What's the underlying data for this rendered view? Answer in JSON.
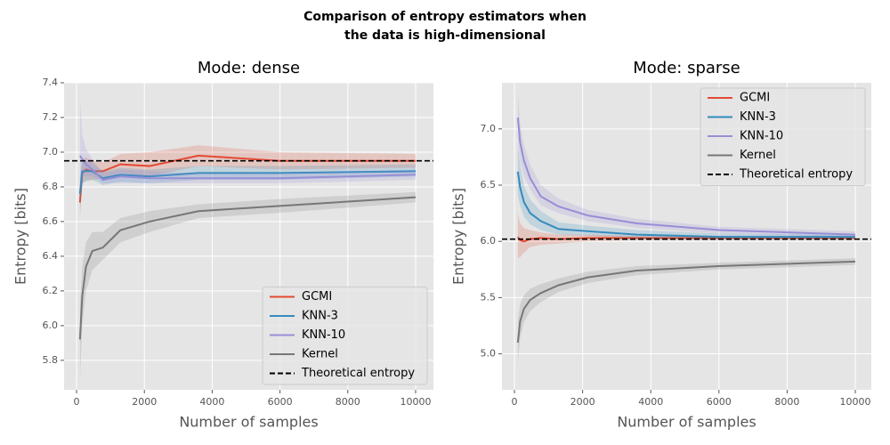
{
  "title": [
    "Comparison of entropy estimators when",
    "the data is high-dimensional"
  ],
  "chart_data": [
    {
      "type": "line",
      "title": "Mode: dense",
      "xlabel": "Number of samples",
      "ylabel": "Entropy [bits]",
      "x": [
        100,
        167,
        278,
        464,
        774,
        1292,
        2154,
        3594,
        5995,
        10000
      ],
      "xlim": [
        -368,
        10525
      ],
      "xticks": [
        0,
        2000,
        4000,
        6000,
        8000,
        10000
      ],
      "ylim": [
        5.63,
        7.4
      ],
      "yticks": [
        5.8,
        {
          "value": 6,
          "label": "6.0"
        },
        6.2,
        6.4,
        6.6,
        6.8,
        {
          "value": 7,
          "label": "7.0"
        },
        7.2,
        7.4
      ],
      "grid": true,
      "legend": "lower right",
      "series": [
        {
          "name": "GCMI",
          "color": "#E24A33",
          "values": [
            6.71,
            6.88,
            6.9,
            6.89,
            6.89,
            6.93,
            6.92,
            6.98,
            6.95,
            6.95
          ],
          "lower": [
            6.62,
            6.82,
            6.84,
            6.84,
            6.85,
            6.88,
            6.86,
            6.92,
            6.9,
            6.91
          ],
          "upper": [
            6.82,
            6.96,
            6.97,
            6.95,
            6.94,
            6.99,
            7.0,
            7.04,
            7.0,
            6.99
          ]
        },
        {
          "name": "KNN-3",
          "color": "#348ABD",
          "values": [
            6.76,
            6.89,
            6.89,
            6.89,
            6.85,
            6.87,
            6.86,
            6.88,
            6.88,
            6.89
          ],
          "lower": [
            6.66,
            6.82,
            6.83,
            6.84,
            6.81,
            6.83,
            6.82,
            6.84,
            6.84,
            6.86
          ],
          "upper": [
            6.86,
            6.96,
            6.95,
            6.94,
            6.89,
            6.91,
            6.9,
            6.92,
            6.92,
            6.93
          ]
        },
        {
          "name": "KNN-10",
          "color": "#988ED5",
          "values": [
            6.98,
            6.96,
            6.93,
            6.9,
            6.84,
            6.86,
            6.85,
            6.85,
            6.85,
            6.87
          ],
          "lower": [
            6.8,
            6.86,
            6.86,
            6.86,
            6.82,
            6.82,
            6.82,
            6.82,
            6.82,
            6.84
          ],
          "upper": [
            7.32,
            7.1,
            7.02,
            6.96,
            6.88,
            6.9,
            6.89,
            6.88,
            6.88,
            6.9
          ]
        },
        {
          "name": "Kernel",
          "color": "#777777",
          "values": [
            5.92,
            6.17,
            6.34,
            6.43,
            6.45,
            6.55,
            6.6,
            6.66,
            6.69,
            6.74
          ],
          "lower": [
            5.68,
            6.0,
            6.2,
            6.32,
            6.38,
            6.48,
            6.54,
            6.62,
            6.65,
            6.71
          ],
          "upper": [
            6.12,
            6.34,
            6.48,
            6.54,
            6.54,
            6.62,
            6.66,
            6.7,
            6.73,
            6.77
          ]
        }
      ],
      "hline": {
        "name": "Theoretical entropy",
        "value": 6.95,
        "color": "#000000"
      }
    },
    {
      "type": "line",
      "title": "Mode: sparse",
      "xlabel": "Number of samples",
      "ylabel": "Entropy [bits]",
      "x": [
        100,
        167,
        278,
        464,
        774,
        1292,
        2154,
        3594,
        5995,
        10000
      ],
      "xlim": [
        -366,
        10470
      ],
      "xticks": [
        0,
        2000,
        4000,
        6000,
        8000,
        10000
      ],
      "ylim": [
        4.68,
        7.41
      ],
      "yticks": [
        {
          "value": 5,
          "label": "5.0"
        },
        5.5,
        {
          "value": 6,
          "label": "6.0"
        },
        6.5,
        {
          "value": 7,
          "label": "7.0"
        }
      ],
      "grid": true,
      "legend": "upper right",
      "series": [
        {
          "name": "GCMI",
          "color": "#E24A33",
          "values": [
            6.04,
            6.01,
            6.0,
            6.02,
            6.03,
            6.02,
            6.03,
            6.03,
            6.03,
            6.03
          ],
          "lower": [
            5.85,
            5.86,
            5.9,
            5.95,
            5.97,
            5.98,
            6.0,
            6.01,
            6.01,
            6.01
          ],
          "upper": [
            6.25,
            6.16,
            6.12,
            6.1,
            6.08,
            6.06,
            6.06,
            6.05,
            6.05,
            6.05
          ]
        },
        {
          "name": "KNN-3",
          "color": "#348ABD",
          "values": [
            6.62,
            6.48,
            6.35,
            6.25,
            6.18,
            6.11,
            6.09,
            6.06,
            6.04,
            6.04
          ],
          "lower": [
            6.4,
            6.32,
            6.22,
            6.15,
            6.1,
            6.06,
            6.05,
            6.03,
            6.02,
            6.02
          ],
          "upper": [
            6.88,
            6.68,
            6.5,
            6.37,
            6.27,
            6.17,
            6.14,
            6.1,
            6.07,
            6.06
          ]
        },
        {
          "name": "KNN-10",
          "color": "#988ED5",
          "values": [
            7.1,
            6.88,
            6.72,
            6.56,
            6.4,
            6.31,
            6.23,
            6.16,
            6.1,
            6.06
          ],
          "lower": [
            6.92,
            6.72,
            6.58,
            6.46,
            6.32,
            6.25,
            6.18,
            6.12,
            6.07,
            6.04
          ],
          "upper": [
            7.32,
            7.05,
            6.86,
            6.68,
            6.5,
            6.38,
            6.28,
            6.2,
            6.13,
            6.09
          ]
        },
        {
          "name": "Kernel",
          "color": "#777777",
          "values": [
            5.1,
            5.29,
            5.4,
            5.48,
            5.54,
            5.61,
            5.68,
            5.74,
            5.78,
            5.82
          ],
          "lower": [
            4.92,
            5.14,
            5.28,
            5.38,
            5.46,
            5.55,
            5.63,
            5.7,
            5.75,
            5.79
          ],
          "upper": [
            5.3,
            5.44,
            5.52,
            5.58,
            5.62,
            5.67,
            5.73,
            5.78,
            5.81,
            5.85
          ]
        }
      ],
      "hline": {
        "name": "Theoretical entropy",
        "value": 6.02,
        "color": "#000000"
      }
    }
  ]
}
